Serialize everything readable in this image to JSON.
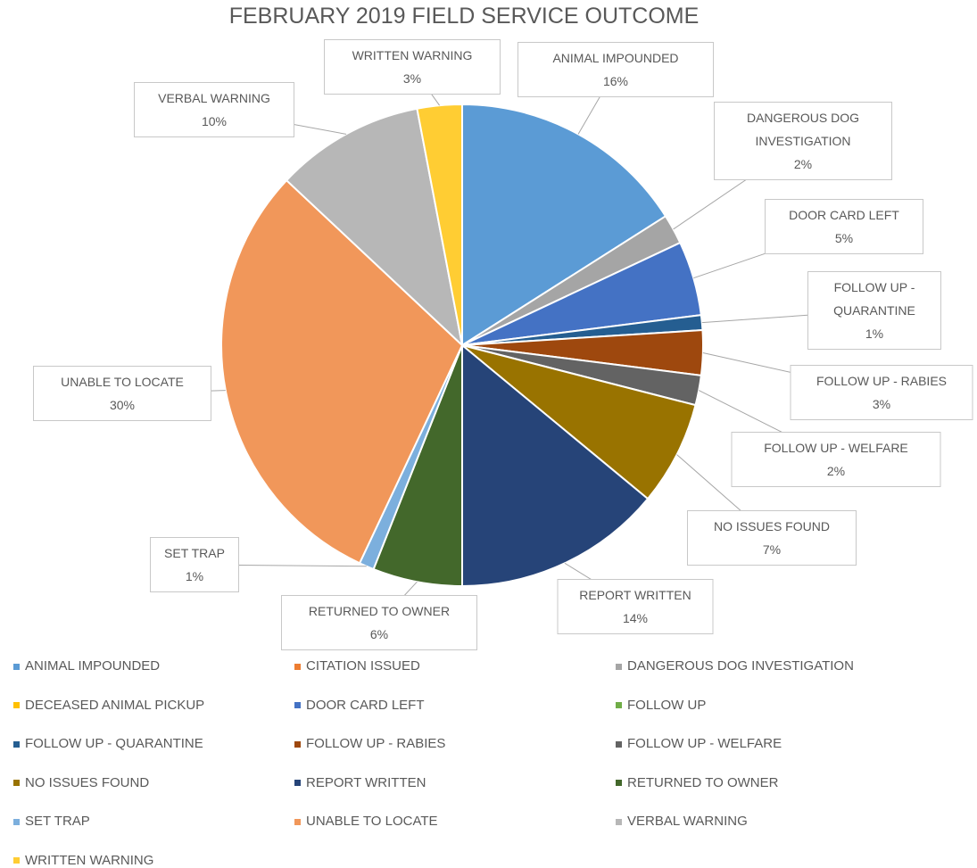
{
  "chart_data": {
    "type": "pie",
    "title": "FEBRUARY 2019 FIELD SERVICE OUTCOME",
    "categories": [
      "ANIMAL IMPOUNDED",
      "CITATION ISSUED",
      "DANGEROUS DOG INVESTIGATION",
      "DECEASED ANIMAL PICKUP",
      "DOOR CARD LEFT",
      "FOLLOW UP",
      "FOLLOW UP - QUARANTINE",
      "FOLLOW UP - RABIES",
      "FOLLOW UP - WELFARE",
      "NO ISSUES FOUND",
      "REPORT WRITTEN",
      "RETURNED TO OWNER",
      "SET TRAP",
      "UNABLE TO LOCATE",
      "VERBAL WARNING",
      "WRITTEN WARNING"
    ],
    "values": [
      16,
      0,
      2,
      0,
      5,
      0,
      1,
      3,
      2,
      7,
      14,
      6,
      1,
      30,
      10,
      3
    ],
    "value_labels": [
      "16%",
      null,
      "2%",
      null,
      "5%",
      null,
      "1%",
      "3%",
      "2%",
      "7%",
      "14%",
      "6%",
      "1%",
      "30%",
      "10%",
      "3%"
    ],
    "colors": [
      "#5b9bd5",
      "#ed7d31",
      "#a5a5a5",
      "#ffc000",
      "#4472c4",
      "#70ad47",
      "#255e91",
      "#9e480e",
      "#636363",
      "#997300",
      "#264478",
      "#43682b",
      "#7cafdd",
      "#f1975a",
      "#b7b7b7",
      "#ffcd33"
    ],
    "legend": "bottom"
  }
}
